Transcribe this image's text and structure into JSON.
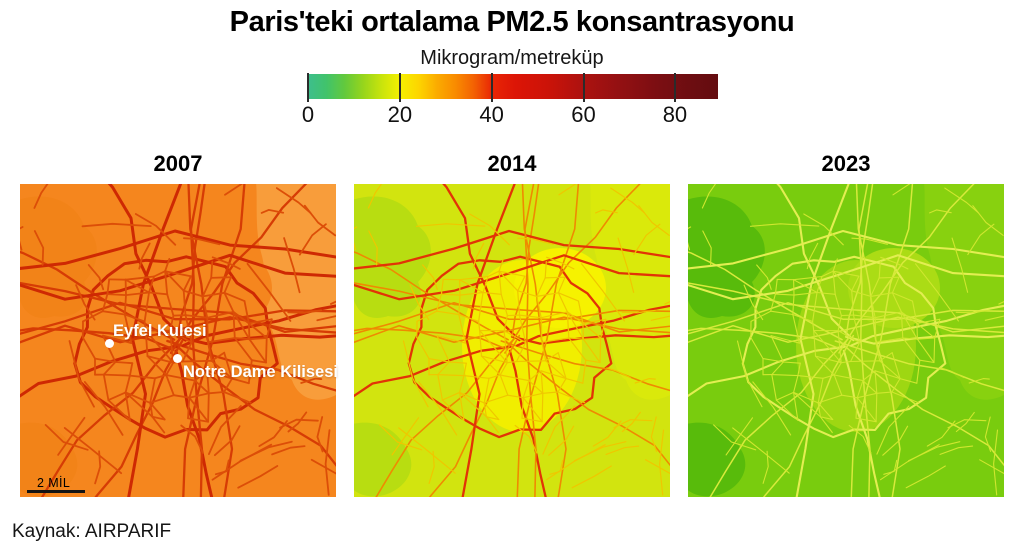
{
  "title": "Paris'teki ortalama PM2.5 konsantrasyonu",
  "source_note": "Kaynak: AIRPARIF",
  "chart_data": {
    "type": "heatmap",
    "subtype": "small-multiple pollution maps of Paris",
    "title": "Paris'teki ortalama PM2.5 konsantrasyonu",
    "legend": {
      "label": "Mikrogram/metreküp",
      "ticks": [
        "0",
        "20",
        "40",
        "60",
        "80"
      ],
      "range": [
        0,
        89
      ],
      "legend_position": "top-center",
      "gradient_stops": [
        {
          "value": 0,
          "color": "#3DBE8D"
        },
        {
          "value": 4,
          "color": "#41C36B"
        },
        {
          "value": 8,
          "color": "#63C93C"
        },
        {
          "value": 12,
          "color": "#97D51C"
        },
        {
          "value": 16,
          "color": "#C9E40C"
        },
        {
          "value": 20,
          "color": "#F5F000"
        },
        {
          "value": 24,
          "color": "#FDD500"
        },
        {
          "value": 28,
          "color": "#FBAB00"
        },
        {
          "value": 32,
          "color": "#F98B00"
        },
        {
          "value": 36,
          "color": "#F36203"
        },
        {
          "value": 40,
          "color": "#E92605"
        },
        {
          "value": 45,
          "color": "#DC1506"
        },
        {
          "value": 52,
          "color": "#CC1308"
        },
        {
          "value": 60,
          "color": "#AB1210"
        },
        {
          "value": 68,
          "color": "#921012"
        },
        {
          "value": 76,
          "color": "#7B0E12"
        },
        {
          "value": 84,
          "color": "#6B0D11"
        },
        {
          "value": 89,
          "color": "#640C10"
        }
      ]
    },
    "panels": [
      {
        "year": "2007",
        "approx_background_pm25": 31,
        "approx_road_pm25": 47,
        "colors": {
          "bg": "#F5861E",
          "patch_right": "#F89D3B",
          "patch_center": "#F5861E",
          "patch_center2": "#F5861E",
          "forest": "#F28318",
          "road_major": "#CE2903",
          "road_mid": "#D63C05",
          "road_minor": "#DC4E08"
        }
      },
      {
        "year": "2014",
        "approx_background_pm25": 18,
        "approx_road_pm25": 38,
        "colors": {
          "bg": "#D2E40F",
          "patch_right": "#DAE90B",
          "patch_center": "#F1EE00",
          "patch_center2": "#F6F200",
          "forest": "#B8DD11",
          "road_major": "#E23306",
          "road_mid": "#EF8A01",
          "road_minor": "#EFC700"
        }
      },
      {
        "year": "2023",
        "approx_background_pm25": 12,
        "approx_road_pm25": 20,
        "colors": {
          "bg": "#79CC0E",
          "patch_right": "#88D10F",
          "patch_center": "#9ED712",
          "patch_center2": "#ABDC15",
          "forest": "#58BB0B",
          "road_major": "#E3EE52",
          "road_mid": "#D8EA3C",
          "road_minor": "#CFE72F"
        }
      }
    ],
    "landmarks": [
      {
        "label": "Eyfel Kulesi"
      },
      {
        "label": "Notre Dame Kilisesi"
      }
    ],
    "scale_bar_label": "2 MİL"
  }
}
